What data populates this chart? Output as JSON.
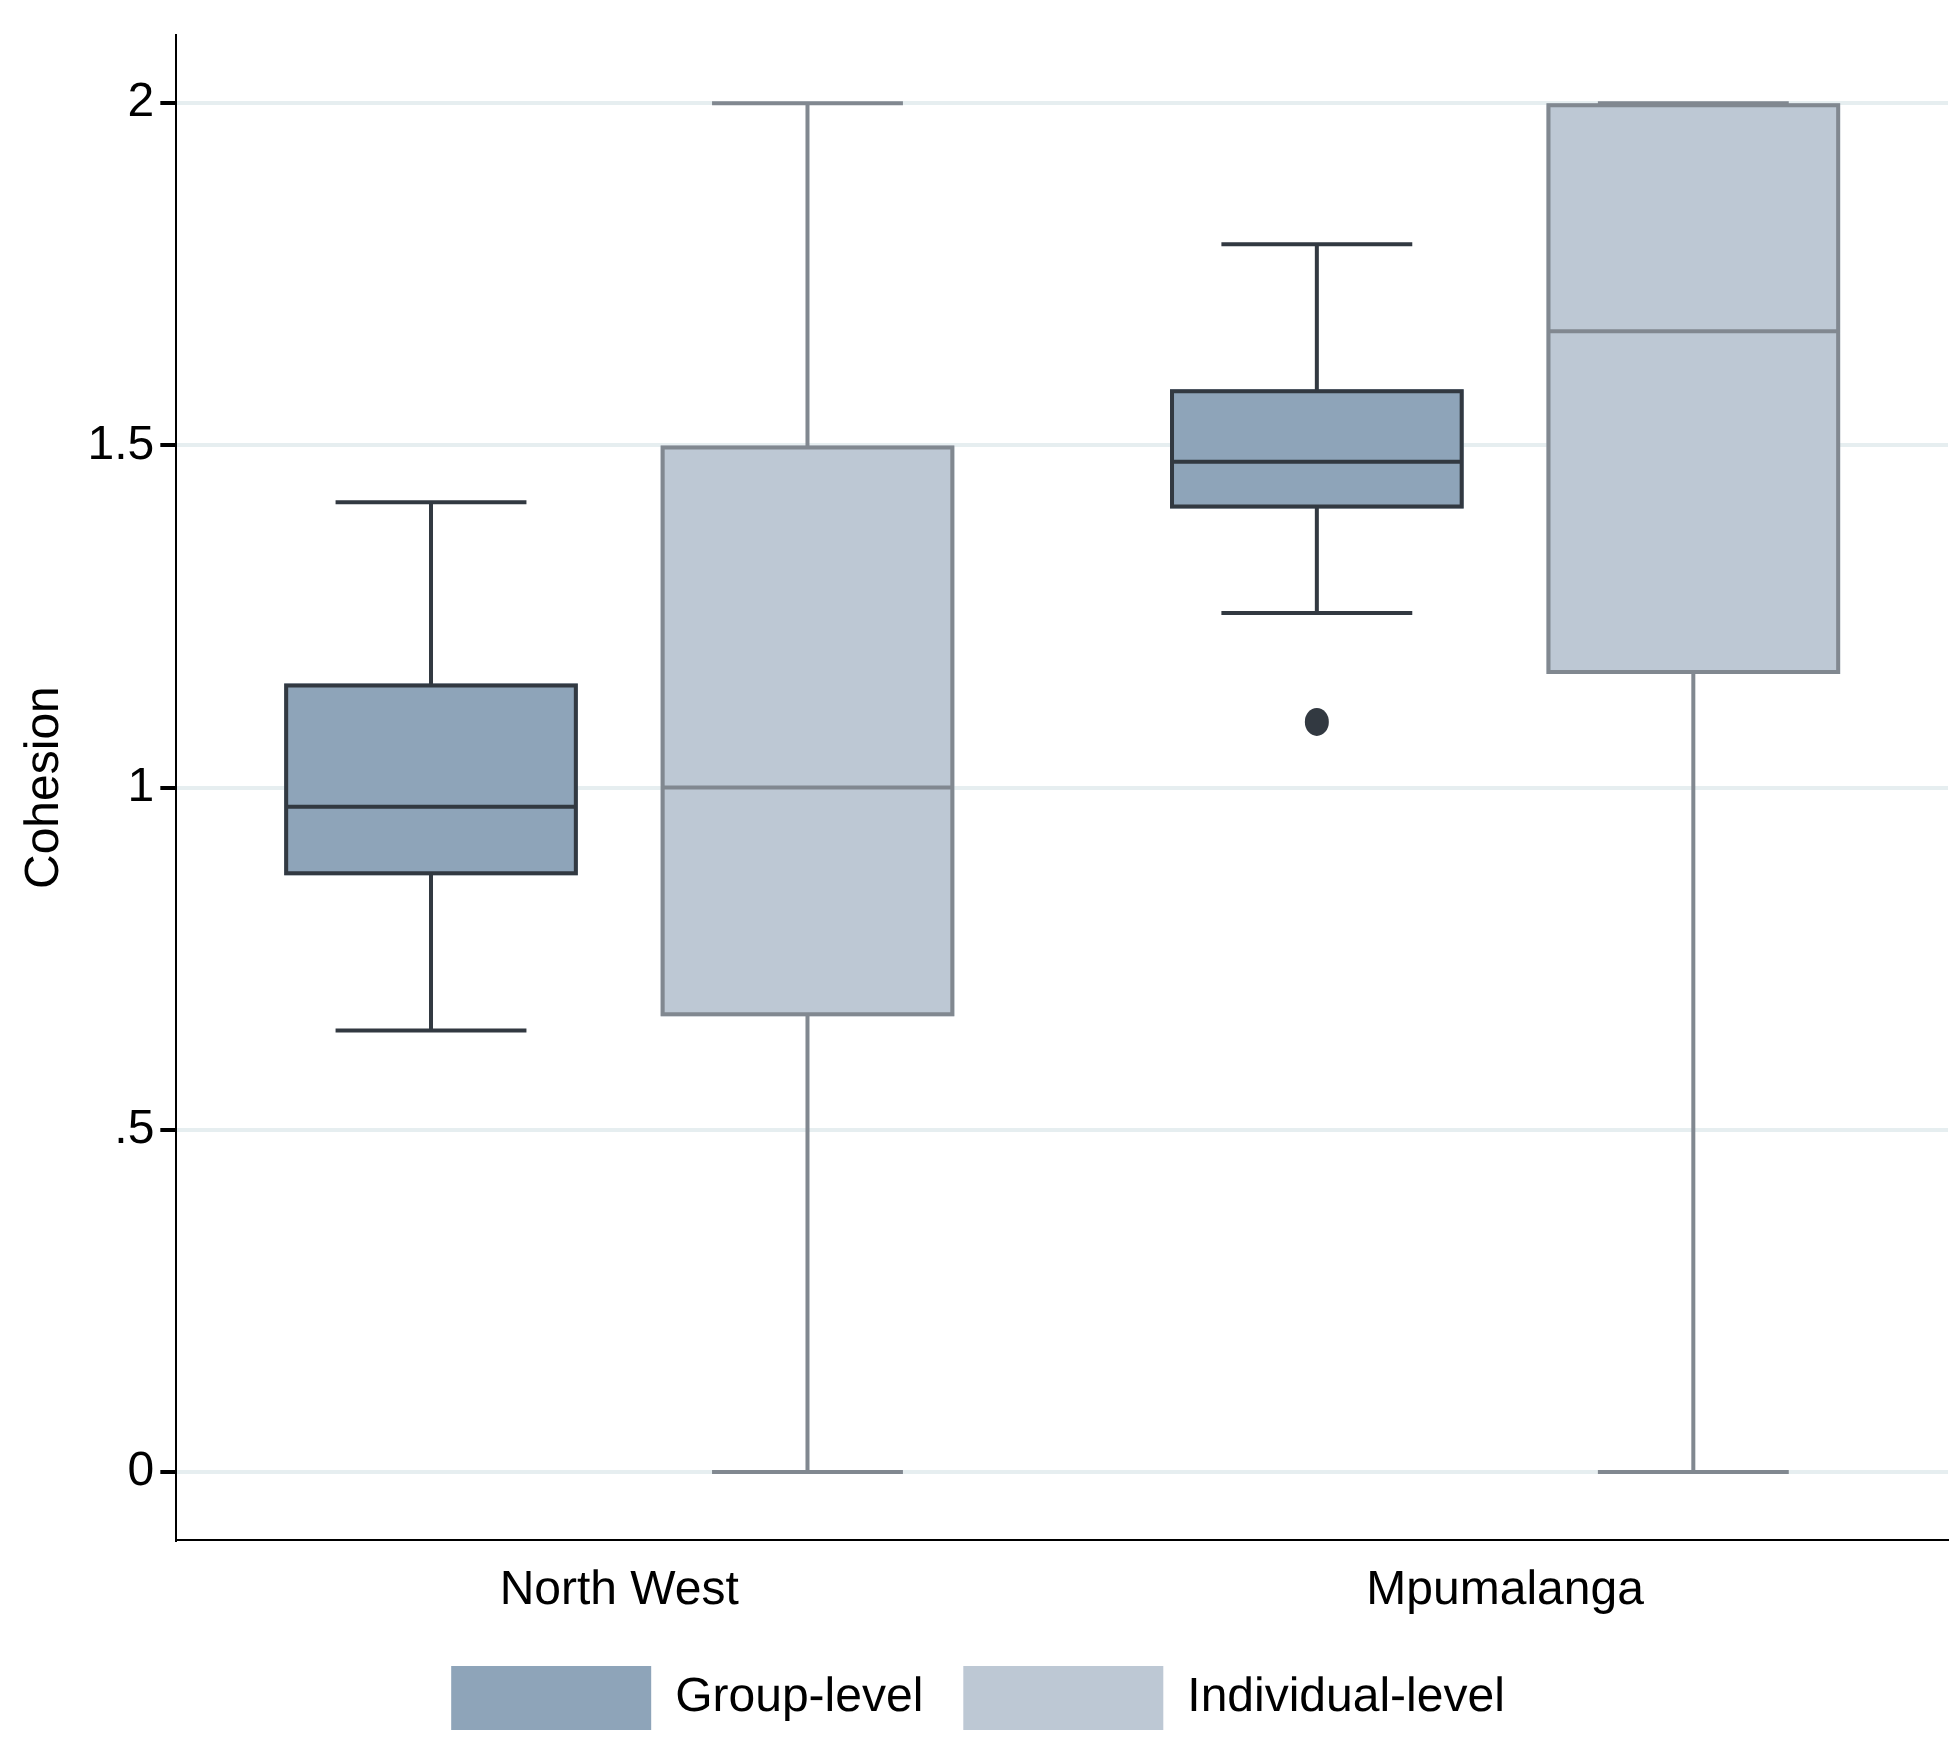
{
  "chart_data": {
    "type": "box",
    "ylabel": "Cohesion",
    "categories": [
      "North West",
      "Mpumalanga"
    ],
    "series": [
      {
        "name": "Group-level",
        "color": "#8ea4b9",
        "boxes": [
          {
            "low": 0.645,
            "q1": 0.872,
            "median": 0.972,
            "q3": 1.152,
            "high": 1.417
          },
          {
            "low": 1.255,
            "q1": 1.408,
            "median": 1.476,
            "q3": 1.582,
            "high": 1.794,
            "outliers": [
              1.096
            ]
          }
        ]
      },
      {
        "name": "Individual-level",
        "color": "#bdc8d4",
        "boxes": [
          {
            "low": 0,
            "q1": 0.666,
            "median": 1.0,
            "q3": 1.5,
            "high": 2.0
          },
          {
            "low": 0,
            "q1": 1.166,
            "median": 1.667,
            "q3": 2.0,
            "high": 2.0
          }
        ]
      }
    ],
    "ylim": [
      -0.1,
      2.1
    ],
    "yticks": [
      0,
      {
        "value": 0.5,
        "label": ".5"
      },
      1,
      1.5,
      2
    ],
    "grid": "y",
    "legend": "bottom"
  }
}
